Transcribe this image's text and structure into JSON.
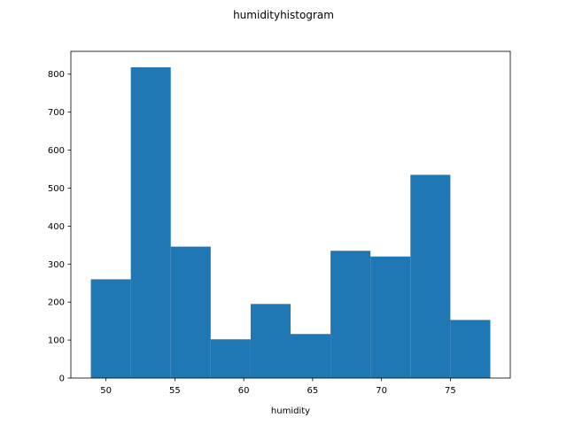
{
  "chart_data": {
    "type": "bar",
    "title": "humidityhistogram",
    "xlabel": "humidity",
    "ylabel": "",
    "bar_color": "#1f77b4",
    "bins": [
      {
        "x0": 48.9,
        "x1": 51.8,
        "value": 260
      },
      {
        "x0": 51.8,
        "x1": 54.7,
        "value": 818
      },
      {
        "x0": 54.7,
        "x1": 57.6,
        "value": 346
      },
      {
        "x0": 57.6,
        "x1": 60.5,
        "value": 102
      },
      {
        "x0": 60.5,
        "x1": 63.4,
        "value": 195
      },
      {
        "x0": 63.4,
        "x1": 66.3,
        "value": 116
      },
      {
        "x0": 66.3,
        "x1": 69.2,
        "value": 335
      },
      {
        "x0": 69.2,
        "x1": 72.1,
        "value": 320
      },
      {
        "x0": 72.1,
        "x1": 75.0,
        "value": 535
      },
      {
        "x0": 75.0,
        "x1": 77.9,
        "value": 153
      }
    ],
    "xlim": [
      47.45,
      79.35
    ],
    "ylim": [
      0,
      860
    ],
    "xticks": [
      50,
      55,
      60,
      65,
      70,
      75
    ],
    "yticks": [
      0,
      100,
      200,
      300,
      400,
      500,
      600,
      700,
      800
    ],
    "grid": false,
    "legend": "none"
  }
}
